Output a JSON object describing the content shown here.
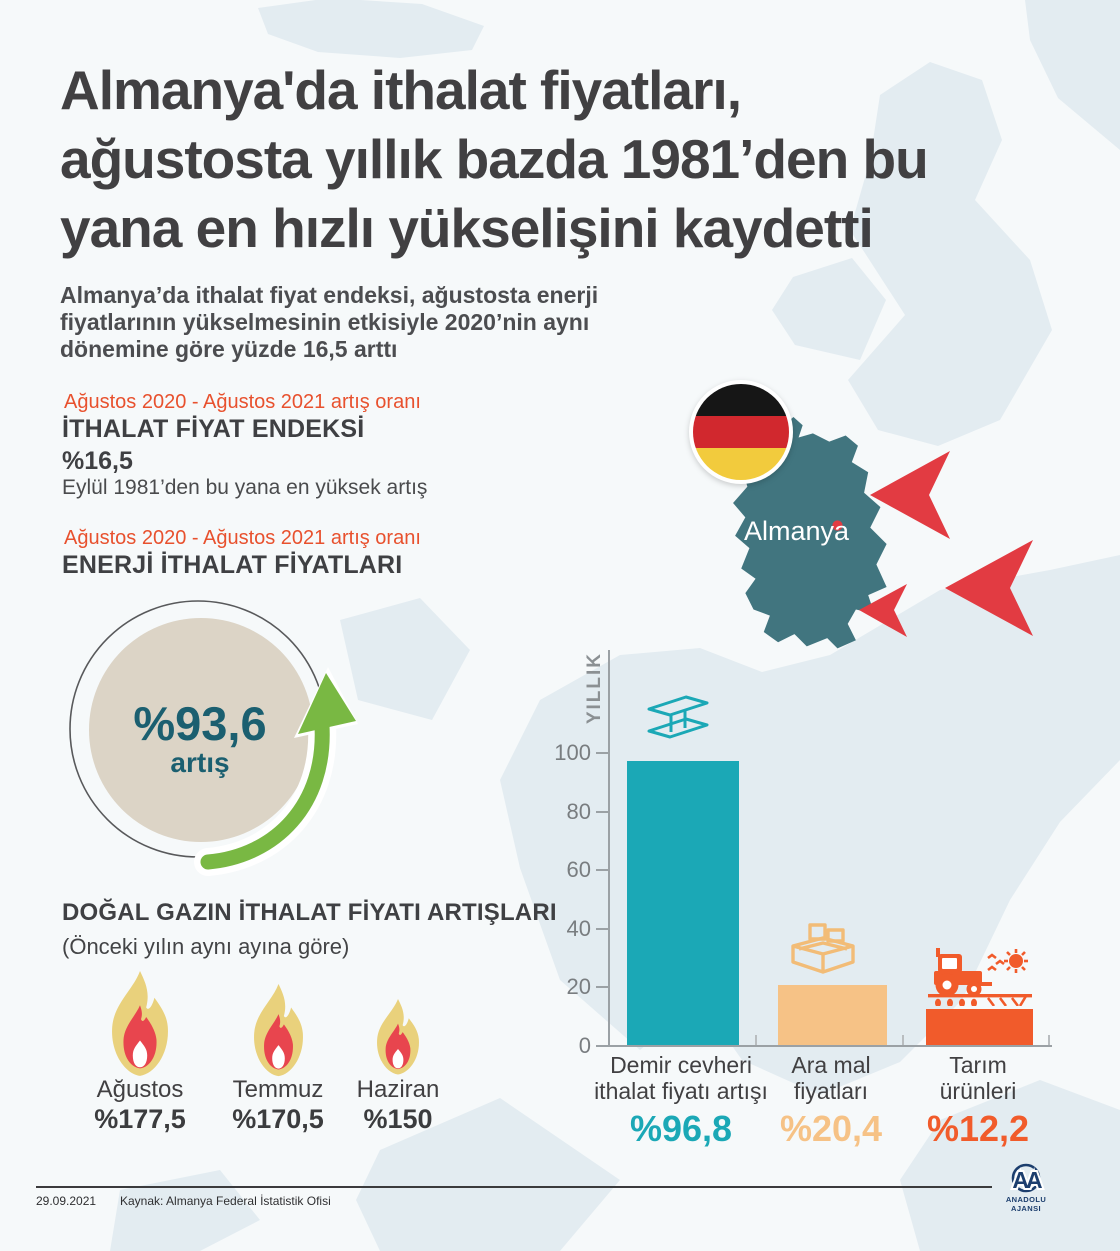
{
  "header": {
    "title": "Almanya'da ithalat fiyatları,\nağustosta yıllık bazda 1981’den bu\nyana en hızlı yükselişini kaydetti",
    "subtitle": "Almanya’da ithalat fiyat endeksi, ağustosta enerji\nfiyatlarının yükselmesinin etkisiyle 2020’nin aynı\ndönemine göre yüzde 16,5 arttı"
  },
  "index_section": {
    "period_label": "Ağustos 2020 - Ağustos 2021 artış oranı",
    "title": "İTHALAT FİYAT ENDEKSİ",
    "value": "%16,5",
    "note": "Eylül 1981’den bu yana en yüksek artış"
  },
  "energy_section": {
    "period_label": "Ağustos 2020 - Ağustos 2021 artış oranı",
    "title": "ENERJİ İTHALAT FİYATLARI",
    "badge_value": "%93,6",
    "badge_unit": "artış"
  },
  "gas_section": {
    "title": "DOĞAL GAZIN İTHALAT FİYATI ARTIŞLARI",
    "subtitle": "(Önceki yılın aynı ayına göre)",
    "months": [
      {
        "label": "Ağustos",
        "value": "%177,5"
      },
      {
        "label": "Temmuz",
        "value": "%170,5"
      },
      {
        "label": "Haziran",
        "value": "%150"
      }
    ]
  },
  "map": {
    "country_label": "Almanya"
  },
  "chart_data": {
    "type": "bar",
    "title": "",
    "xlabel": "",
    "ylabel": "YILLIK",
    "yticks": [
      0,
      20,
      40,
      60,
      80,
      100
    ],
    "ylim": [
      0,
      134
    ],
    "grid": false,
    "legend": "none",
    "categories": [
      "Demir cevheri ithalat fiyatı artışı",
      "Ara mal fiyatları",
      "Tarım ürünleri"
    ],
    "values": [
      96.8,
      20.4,
      12.2
    ],
    "bars": [
      {
        "icon": "steel-beam-icon",
        "label": "Demir cevheri\nithalat fiyatı artışı",
        "value": 96.8,
        "value_label": "%96,8",
        "color": "#1ba8b6"
      },
      {
        "icon": "goods-box-icon",
        "label": "Ara mal\nfiyatları",
        "value": 20.4,
        "value_label": "%20,4",
        "color": "#f6c286"
      },
      {
        "icon": "tractor-icon",
        "label": "Tarım\nürünleri",
        "value": 12.2,
        "value_label": "%12,2",
        "color": "#f15b2b"
      }
    ]
  },
  "footer": {
    "date": "29.09.2021",
    "source": "Kaynak: Almanya Federal İstatistik Ofisi",
    "agency_monogram": "AA",
    "agency_name": "ANADOLU AJANSI"
  },
  "colors": {
    "accent_red": "#e8512e",
    "dark_text": "#414042",
    "teal": "#1ba8b6",
    "tan": "#f6c286",
    "orange": "#f15b2b",
    "map_teal": "#41757f",
    "arrow_red": "#e23b42",
    "green_arrow": "#79b843",
    "badge_bg": "#dcd4c6",
    "badge_text": "#1b5f70",
    "flame_yellow": "#e9d17c",
    "flame_red": "#e8454e",
    "navy": "#1c3e6e"
  }
}
